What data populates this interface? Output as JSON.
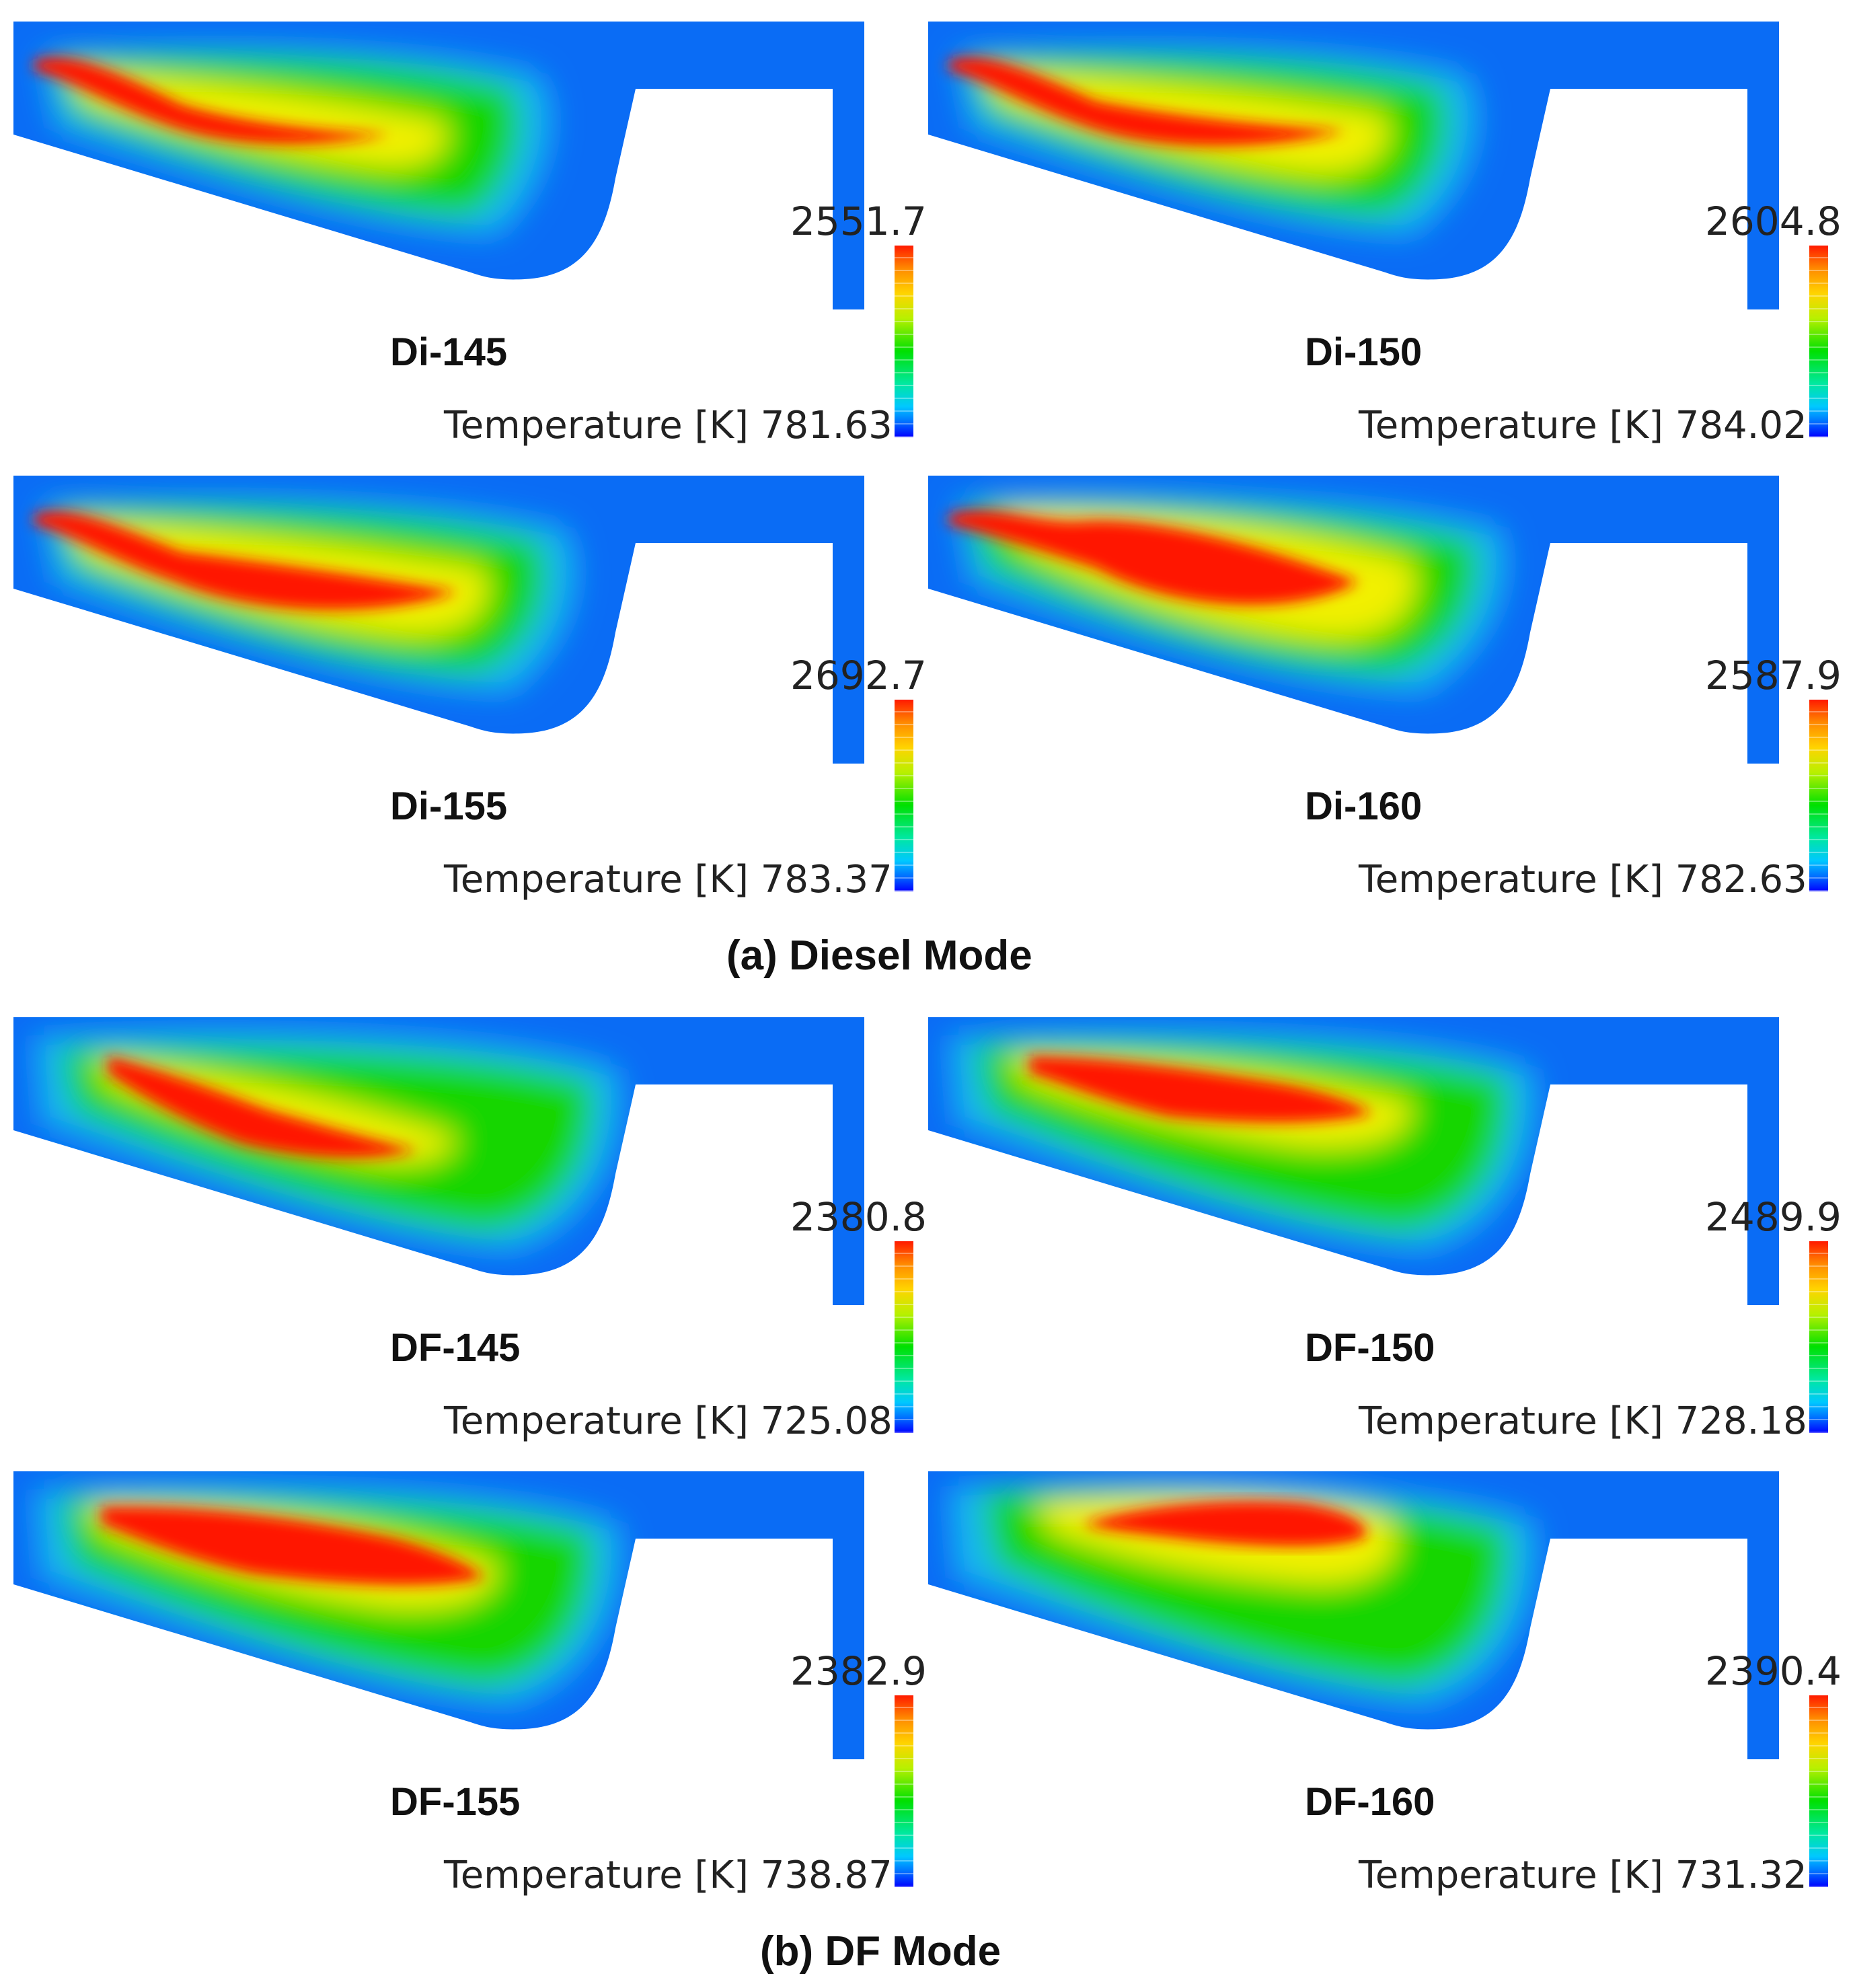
{
  "sections": [
    {
      "title": "(a) Diesel Mode",
      "panels": [
        {
          "label": "Di-145",
          "variable": "Temperature [K]",
          "max": "2551.7",
          "min": "781.63"
        },
        {
          "label": "Di-150",
          "variable": "Temperature [K]",
          "max": "2604.8",
          "min": "784.02"
        },
        {
          "label": "Di-155",
          "variable": "Temperature [K]",
          "max": "2692.7",
          "min": "783.37"
        },
        {
          "label": "Di-160",
          "variable": "Temperature [K]",
          "max": "2587.9",
          "min": "782.63"
        }
      ]
    },
    {
      "title": "(b) DF Mode",
      "panels": [
        {
          "label": "DF-145",
          "variable": "Temperature [K]",
          "max": "2380.8",
          "min": "725.08"
        },
        {
          "label": "DF-150",
          "variable": "Temperature [K]",
          "max": "2489.9",
          "min": "728.18"
        },
        {
          "label": "DF-155",
          "variable": "Temperature [K]",
          "max": "2382.9",
          "min": "738.87"
        },
        {
          "label": "DF-160",
          "variable": "Temperature [K]",
          "max": "2390.4",
          "min": "731.32"
        }
      ]
    }
  ],
  "colors": {
    "cold": "#0a6cf5",
    "cool": "#12b8f0",
    "mid": "#19d600",
    "warm": "#f2f000",
    "hot": "#ff1600"
  }
}
